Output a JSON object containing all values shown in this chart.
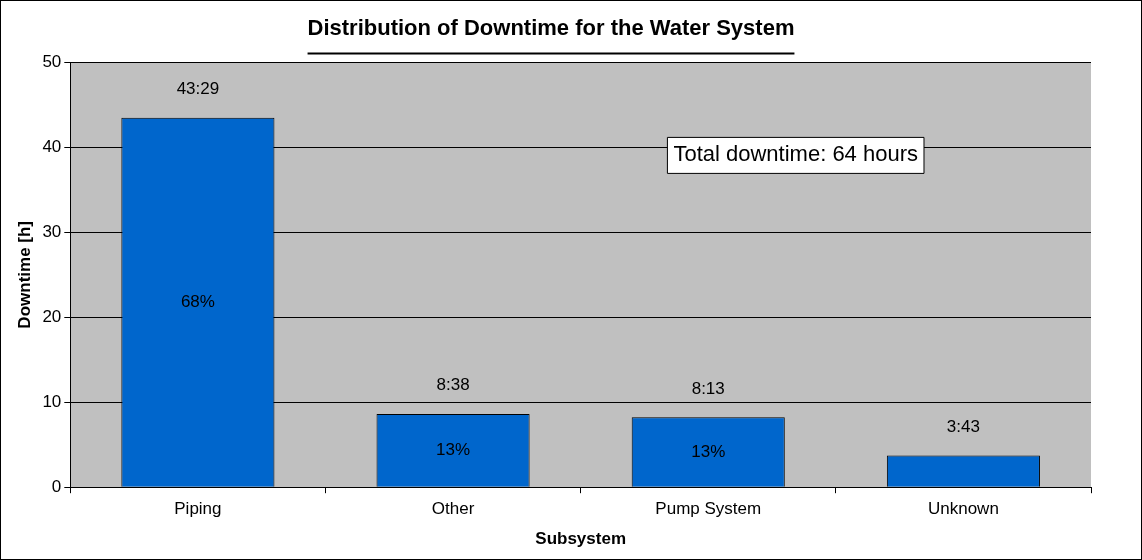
{
  "chart_data": {
    "type": "bar",
    "title": "Distribution of Downtime for the Water System",
    "xlabel": "Subsystem",
    "ylabel": "Downtime [h]",
    "categories": [
      "Piping",
      "Other",
      "Pump System",
      "Unknown"
    ],
    "values": [
      43.48,
      8.63,
      8.22,
      3.72
    ],
    "value_labels": [
      "43:29",
      "8:38",
      "8:13",
      "3:43"
    ],
    "color": "#0066cc",
    "ylim": [
      0,
      50
    ],
    "yticks": [
      0,
      10,
      20,
      30,
      40,
      50
    ],
    "grid": "y",
    "legend": false,
    "annotations": [
      "Total downtime: 64 hours",
      "68%",
      "13%",
      "13%"
    ]
  }
}
